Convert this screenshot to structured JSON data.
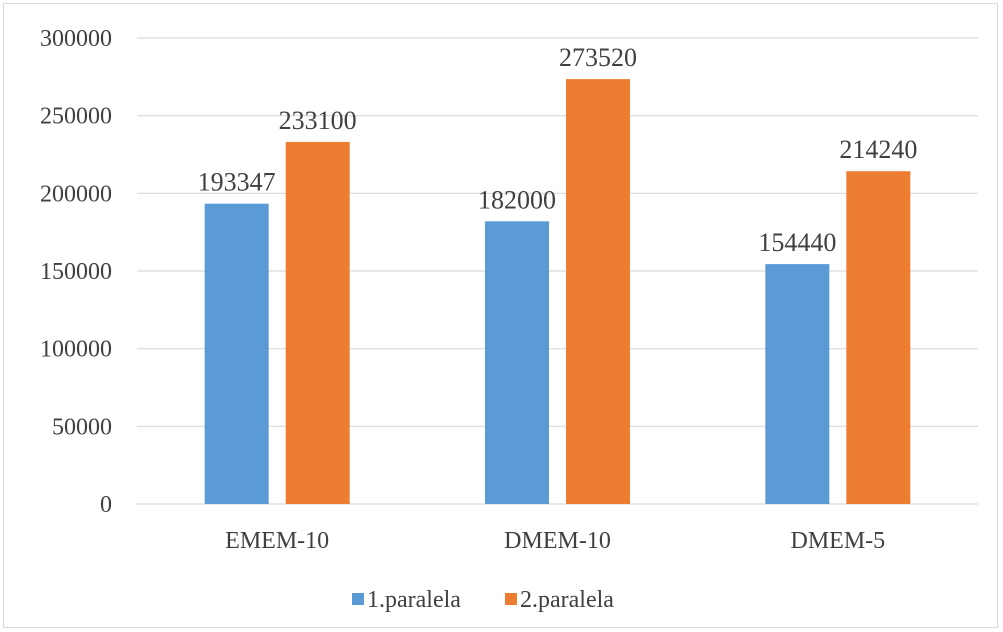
{
  "chart_data": {
    "type": "bar",
    "categories": [
      "EMEM-10",
      "DMEM-10",
      "DMEM-5"
    ],
    "series": [
      {
        "name": "1.paralela",
        "values": [
          193347,
          182000,
          154440
        ],
        "color": "#5b9bd5"
      },
      {
        "name": "2.paralela",
        "values": [
          233100,
          273520,
          214240
        ],
        "color": "#ed7d31"
      }
    ],
    "ylim": [
      0,
      300000
    ],
    "yticks": [
      "0",
      "50000",
      "100000",
      "150000",
      "200000",
      "250000",
      "300000"
    ],
    "grid": true,
    "legend": "bottom-center",
    "title": "",
    "xlabel": "",
    "ylabel": ""
  }
}
